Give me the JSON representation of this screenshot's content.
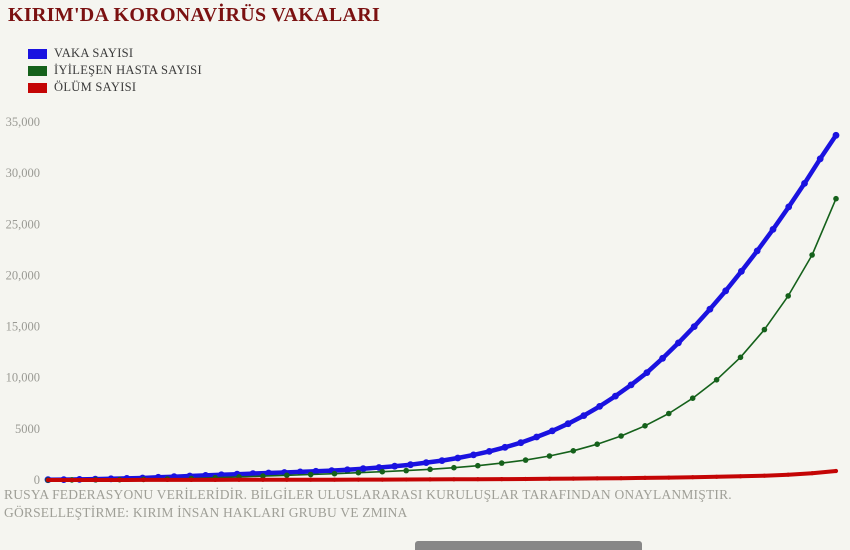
{
  "title": "KIRIM'DA KORONAVİRÜS VAKALARI",
  "title_color": "#7b1111",
  "background_color": "#f5f5f0",
  "footer": {
    "line1": "RUSYA FEDERASYONU VERİLERİDİR. BİLGİLER ULUSLARARASI KURULUŞLAR TARAFINDAN ONAYLANMIŞTIR.",
    "line2": "GÖRSELLEŞTİRME: KIRIM İNSAN HAKLARI GRUBU VE ZMINA"
  },
  "chart_data": {
    "type": "line",
    "title": "KIRIM'DA KORONAVİRÜS VAKALARI",
    "xlabel": "",
    "ylabel": "",
    "ylim": [
      0,
      35000
    ],
    "grid": false,
    "x_labels_visible": false,
    "legend_position": "top-left",
    "yticks": {
      "values": [
        0,
        5000,
        10000,
        15000,
        20000,
        25000,
        30000,
        35000
      ],
      "labels": [
        "0",
        "5000",
        "10,000",
        "15,000",
        "20,000",
        "25,000",
        "30,000",
        "35,000"
      ]
    },
    "series": [
      {
        "name": "VAKA SAYISI",
        "color": "#1a12e0",
        "line_width": 4.5,
        "marker_radius": 3.4,
        "values": [
          30,
          40,
          60,
          90,
          120,
          160,
          200,
          260,
          320,
          390,
          450,
          510,
          570,
          630,
          680,
          730,
          790,
          850,
          920,
          1000,
          1100,
          1220,
          1350,
          1500,
          1700,
          1900,
          2150,
          2450,
          2800,
          3200,
          3650,
          4200,
          4800,
          5500,
          6300,
          7200,
          8200,
          9300,
          10500,
          11900,
          13400,
          15000,
          16700,
          18500,
          20400,
          22400,
          24500,
          26700,
          29000,
          31400,
          33700
        ]
      },
      {
        "name": "İYİLEŞEN HASTA SAYISI",
        "color": "#15611b",
        "line_width": 1.6,
        "marker_radius": 2.8,
        "values": [
          0,
          5,
          15,
          30,
          60,
          100,
          150,
          220,
          300,
          380,
          460,
          540,
          620,
          710,
          810,
          920,
          1050,
          1200,
          1400,
          1650,
          1950,
          2350,
          2850,
          3500,
          4300,
          5300,
          6500,
          8000,
          9800,
          12000,
          14700,
          18000,
          22000,
          27500
        ]
      },
      {
        "name": "ÖLÜM SAYISI",
        "color": "#c40505",
        "line_width": 4,
        "marker_radius": 2.1,
        "values": [
          0,
          1,
          2,
          3,
          5,
          7,
          9,
          12,
          15,
          18,
          22,
          26,
          31,
          37,
          43,
          50,
          58,
          67,
          77,
          89,
          102,
          117,
          135,
          155,
          178,
          205,
          236,
          272,
          313,
          360,
          420,
          520,
          660,
          880
        ]
      }
    ]
  }
}
